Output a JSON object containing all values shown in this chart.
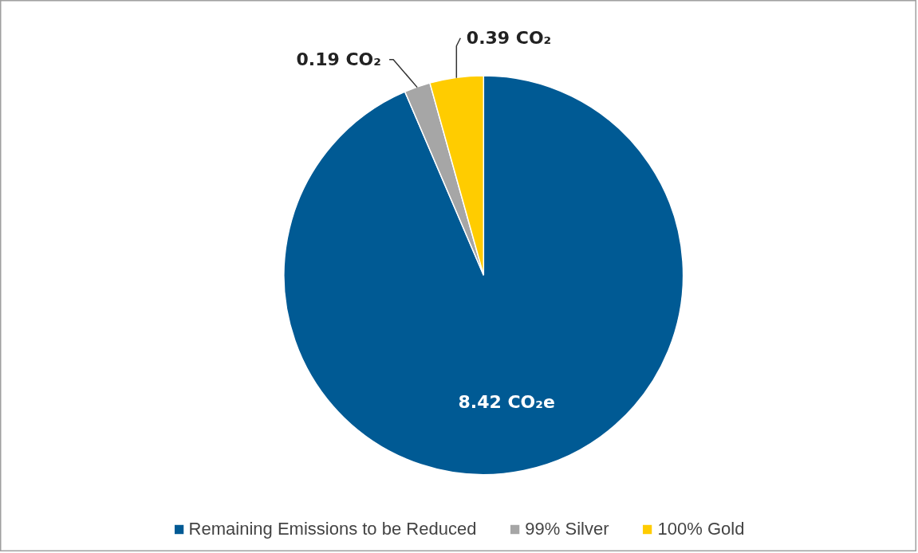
{
  "chart_data": {
    "type": "pie",
    "categories": [
      "Remaining Emissions to be Reduced",
      "99% Silver",
      "100% Gold"
    ],
    "values": [
      8.42,
      0.19,
      0.39
    ],
    "colors": [
      "#005a94",
      "#a6a6a6",
      "#ffcc00"
    ],
    "value_labels": [
      "8.42  CO₂e",
      "0.19  CO₂",
      "0.39  CO₂"
    ],
    "legend": "bottom"
  }
}
